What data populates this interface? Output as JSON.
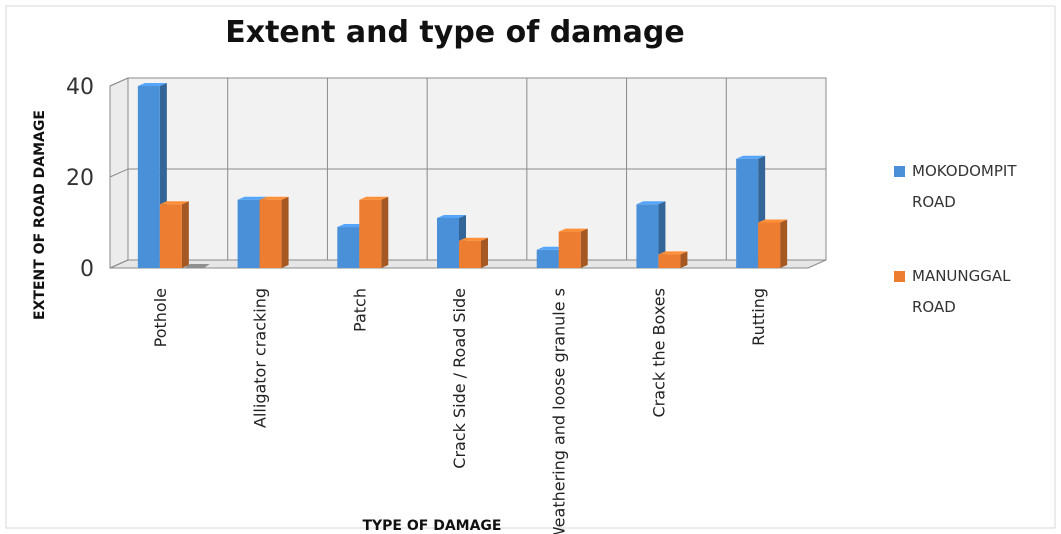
{
  "chart_data": {
    "type": "bar",
    "title": "Extent and type of damage",
    "xlabel": "TYPE OF DAMAGE",
    "ylabel": "EXTENT OF ROAD DAMAGE",
    "categories": [
      "Pothole",
      "Alligator cracking",
      "Patch",
      "Crack Side / Road Side",
      "Weathering and loose granule s",
      "Crack the Boxes",
      "Rutting"
    ],
    "series": [
      {
        "name": "MOKODOMPIT ROAD",
        "values": [
          40,
          15,
          9,
          11,
          4,
          14,
          24
        ],
        "color": "#4a90d9"
      },
      {
        "name": "MANUNGGAL ROAD",
        "values": [
          14,
          15,
          15,
          6,
          8,
          3,
          10
        ],
        "color": "#ed7d31"
      }
    ],
    "ylim": [
      0,
      40
    ],
    "yticks": [
      "0",
      "20",
      "40"
    ],
    "grid": true,
    "legend": "right",
    "extra_mark": {
      "color": "#8f8f8f"
    }
  }
}
